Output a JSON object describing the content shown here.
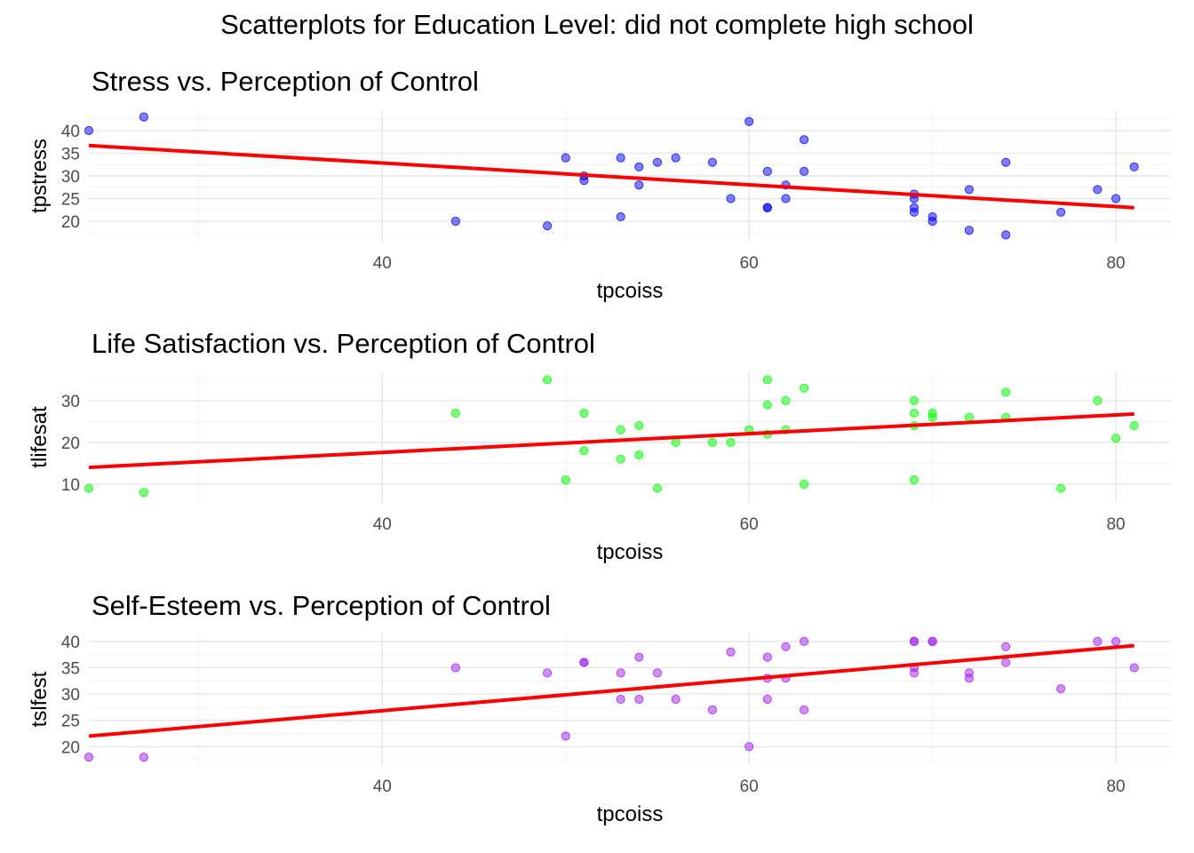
{
  "figure": {
    "title": "Scatterplots for Education Level: did not complete high school"
  },
  "chart_data": [
    {
      "type": "scatter",
      "title": "Stress vs. Perception of Control",
      "xlabel": "tpcoiss",
      "ylabel": "tpstress",
      "xlim": [
        24,
        83
      ],
      "ylim": [
        15.5,
        44.5
      ],
      "x_ticks": [
        40,
        60,
        80
      ],
      "y_ticks": [
        20,
        25,
        30,
        35,
        40
      ],
      "grid": true,
      "point_color": "#0000ff",
      "points": [
        [
          24,
          40
        ],
        [
          27,
          43
        ],
        [
          44,
          20
        ],
        [
          49,
          19
        ],
        [
          50,
          34
        ],
        [
          51,
          30
        ],
        [
          51,
          29
        ],
        [
          53,
          34
        ],
        [
          53,
          21
        ],
        [
          54,
          32
        ],
        [
          54,
          28
        ],
        [
          55,
          33
        ],
        [
          56,
          34
        ],
        [
          58,
          33
        ],
        [
          59,
          25
        ],
        [
          60,
          42
        ],
        [
          61,
          31
        ],
        [
          61,
          23
        ],
        [
          61,
          23
        ],
        [
          62,
          28
        ],
        [
          62,
          25
        ],
        [
          63,
          38
        ],
        [
          63,
          31
        ],
        [
          69,
          26
        ],
        [
          69,
          25
        ],
        [
          69,
          23
        ],
        [
          69,
          22
        ],
        [
          70,
          21
        ],
        [
          70,
          20
        ],
        [
          72,
          27
        ],
        [
          72,
          18
        ],
        [
          74,
          33
        ],
        [
          74,
          17
        ],
        [
          77,
          22
        ],
        [
          79,
          27
        ],
        [
          80,
          25
        ],
        [
          81,
          32
        ]
      ],
      "trend_line": {
        "color": "#ff0000",
        "x": [
          24,
          81
        ],
        "y": [
          36.7,
          23.0
        ]
      }
    },
    {
      "type": "scatter",
      "title": "Life Satisfaction vs. Perception of Control",
      "xlabel": "tpcoiss",
      "ylabel": "tlifesat",
      "xlim": [
        24,
        83
      ],
      "ylim": [
        5.5,
        37
      ],
      "x_ticks": [
        40,
        60,
        80
      ],
      "y_ticks": [
        10,
        20,
        30
      ],
      "grid": true,
      "point_color": "#00ff00",
      "points": [
        [
          24,
          9
        ],
        [
          27,
          8
        ],
        [
          44,
          27
        ],
        [
          49,
          35
        ],
        [
          50,
          11
        ],
        [
          51,
          27
        ],
        [
          51,
          18
        ],
        [
          53,
          23
        ],
        [
          53,
          16
        ],
        [
          54,
          24
        ],
        [
          54,
          17
        ],
        [
          55,
          9
        ],
        [
          56,
          20
        ],
        [
          58,
          20
        ],
        [
          59,
          20
        ],
        [
          60,
          23
        ],
        [
          61,
          35
        ],
        [
          61,
          29
        ],
        [
          61,
          22
        ],
        [
          62,
          30
        ],
        [
          62,
          23
        ],
        [
          63,
          33
        ],
        [
          63,
          10
        ],
        [
          69,
          30
        ],
        [
          69,
          27
        ],
        [
          69,
          24
        ],
        [
          69,
          11
        ],
        [
          70,
          27
        ],
        [
          70,
          26
        ],
        [
          72,
          26
        ],
        [
          74,
          32
        ],
        [
          74,
          26
        ],
        [
          77,
          9
        ],
        [
          79,
          30
        ],
        [
          80,
          21
        ],
        [
          81,
          24
        ]
      ],
      "trend_line": {
        "color": "#ff0000",
        "x": [
          24,
          81
        ],
        "y": [
          14.0,
          26.8
        ]
      }
    },
    {
      "type": "scatter",
      "title": "Self-Esteem vs. Perception of Control",
      "xlabel": "tpcoiss",
      "ylabel": "tslfest",
      "xlim": [
        24,
        83
      ],
      "ylim": [
        16.5,
        41.5
      ],
      "x_ticks": [
        40,
        60,
        80
      ],
      "y_ticks": [
        20,
        25,
        30,
        35,
        40
      ],
      "grid": true,
      "point_color": "#a020f0",
      "points": [
        [
          24,
          18
        ],
        [
          27,
          18
        ],
        [
          44,
          35
        ],
        [
          49,
          34
        ],
        [
          50,
          22
        ],
        [
          51,
          36
        ],
        [
          51,
          36
        ],
        [
          53,
          34
        ],
        [
          53,
          29
        ],
        [
          54,
          37
        ],
        [
          54,
          29
        ],
        [
          55,
          34
        ],
        [
          56,
          29
        ],
        [
          58,
          27
        ],
        [
          59,
          38
        ],
        [
          60,
          20
        ],
        [
          61,
          37
        ],
        [
          61,
          33
        ],
        [
          61,
          29
        ],
        [
          62,
          39
        ],
        [
          62,
          33
        ],
        [
          63,
          40
        ],
        [
          63,
          27
        ],
        [
          69,
          40
        ],
        [
          69,
          40
        ],
        [
          69,
          35
        ],
        [
          69,
          34
        ],
        [
          70,
          40
        ],
        [
          70,
          40
        ],
        [
          72,
          34
        ],
        [
          72,
          33
        ],
        [
          74,
          39
        ],
        [
          74,
          36
        ],
        [
          77,
          31
        ],
        [
          79,
          40
        ],
        [
          80,
          40
        ],
        [
          81,
          35
        ]
      ],
      "trend_line": {
        "color": "#ff0000",
        "x": [
          24,
          81
        ],
        "y": [
          22.0,
          39.2
        ]
      }
    }
  ]
}
